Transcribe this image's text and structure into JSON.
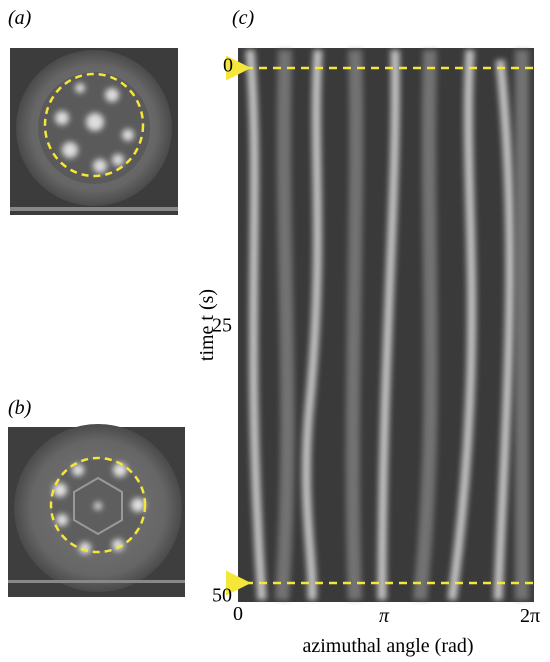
{
  "panels": [
    {
      "label": "(a)"
    },
    {
      "label": "(b)"
    },
    {
      "label": "(c)",
      "ylabel": "time t (s)",
      "xlabel": "azimuthal angle (rad)",
      "yticks": [
        0,
        25,
        50
      ],
      "xticks": [
        "0",
        "π",
        "2π"
      ]
    }
  ]
}
